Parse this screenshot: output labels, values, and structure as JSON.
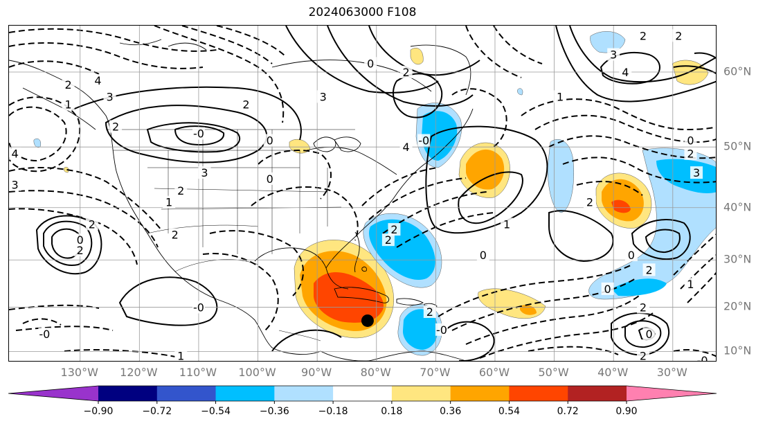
{
  "title": "2024063000 F108",
  "map": {
    "longitude_labels": [
      "130°W",
      "120°W",
      "110°W",
      "100°W",
      "90°W",
      "80°W",
      "70°W",
      "60°W",
      "50°W",
      "40°W",
      "30°W"
    ],
    "latitude_labels": [
      "60°N",
      "50°N",
      "40°N",
      "30°N",
      "20°N",
      "10°N"
    ],
    "contour_labels": [
      {
        "text": "2",
        "lon": -132,
        "lat": 58.5
      },
      {
        "text": "1",
        "lon": -132,
        "lat": 56
      },
      {
        "text": "3",
        "lon": -125,
        "lat": 57
      },
      {
        "text": "4",
        "lon": -127,
        "lat": 59
      },
      {
        "text": "2",
        "lon": -124,
        "lat": 53
      },
      {
        "text": "4",
        "lon": -141,
        "lat": 49
      },
      {
        "text": "3",
        "lon": -141,
        "lat": 44
      },
      {
        "text": "-0",
        "lon": -110,
        "lat": 52
      },
      {
        "text": "3",
        "lon": -109,
        "lat": 46
      },
      {
        "text": "2",
        "lon": -113,
        "lat": 43
      },
      {
        "text": "1",
        "lon": -115,
        "lat": 41
      },
      {
        "text": "2",
        "lon": -102,
        "lat": 56
      },
      {
        "text": "3",
        "lon": -89,
        "lat": 57
      },
      {
        "text": "0",
        "lon": -98,
        "lat": 51
      },
      {
        "text": "0",
        "lon": -98,
        "lat": 45
      },
      {
        "text": "2",
        "lon": -128,
        "lat": 37
      },
      {
        "text": "2",
        "lon": -114,
        "lat": 35
      },
      {
        "text": "0",
        "lon": -130,
        "lat": 34
      },
      {
        "text": "2",
        "lon": -130,
        "lat": 32
      },
      {
        "text": "-0",
        "lon": -110,
        "lat": 20
      },
      {
        "text": "-0",
        "lon": -136,
        "lat": 14
      },
      {
        "text": "1",
        "lon": -113,
        "lat": 9
      },
      {
        "text": "0",
        "lon": -81,
        "lat": 61
      },
      {
        "text": "2",
        "lon": -75,
        "lat": 60
      },
      {
        "text": "-0",
        "lon": -72,
        "lat": 51
      },
      {
        "text": "4",
        "lon": -75,
        "lat": 50
      },
      {
        "text": "2",
        "lon": -77,
        "lat": 36
      },
      {
        "text": "2",
        "lon": -78,
        "lat": 34
      },
      {
        "text": "1",
        "lon": -58,
        "lat": 37
      },
      {
        "text": "0",
        "lon": -62,
        "lat": 31
      },
      {
        "text": "2",
        "lon": -71,
        "lat": 19
      },
      {
        "text": "-0",
        "lon": -69,
        "lat": 15
      },
      {
        "text": "3",
        "lon": -40,
        "lat": 62
      },
      {
        "text": "2",
        "lon": -35,
        "lat": 64
      },
      {
        "text": "4",
        "lon": -38,
        "lat": 60
      },
      {
        "text": "1",
        "lon": -49,
        "lat": 57
      },
      {
        "text": "2",
        "lon": -29,
        "lat": 64
      },
      {
        "text": "0",
        "lon": -27,
        "lat": 51
      },
      {
        "text": "2",
        "lon": -27,
        "lat": 49
      },
      {
        "text": "3",
        "lon": -26,
        "lat": 46
      },
      {
        "text": "2",
        "lon": -44,
        "lat": 41
      },
      {
        "text": "0",
        "lon": -37,
        "lat": 31
      },
      {
        "text": "0",
        "lon": -41,
        "lat": 24
      },
      {
        "text": "2",
        "lon": -34,
        "lat": 28
      },
      {
        "text": "1",
        "lon": -27,
        "lat": 25
      },
      {
        "text": "2",
        "lon": -35,
        "lat": 20
      },
      {
        "text": "0",
        "lon": -34,
        "lat": 14
      },
      {
        "text": "2",
        "lon": -35,
        "lat": 9
      },
      {
        "text": "-0",
        "lon": -25,
        "lat": 8
      }
    ],
    "storm_marker": {
      "lon": -81.5,
      "lat": 17
    }
  },
  "colorbar": {
    "tick_labels": [
      "−0.90",
      "−0.72",
      "−0.54",
      "−0.36",
      "−0.18",
      "0.18",
      "0.36",
      "0.54",
      "0.72",
      "0.90"
    ],
    "colors": [
      "#9933cc",
      "#000080",
      "#3355cc",
      "#00bfff",
      "#b0e0ff",
      "#ffffff",
      "#ffe680",
      "#ffa500",
      "#ff4500",
      "#b22222",
      "#ff80b0"
    ]
  }
}
